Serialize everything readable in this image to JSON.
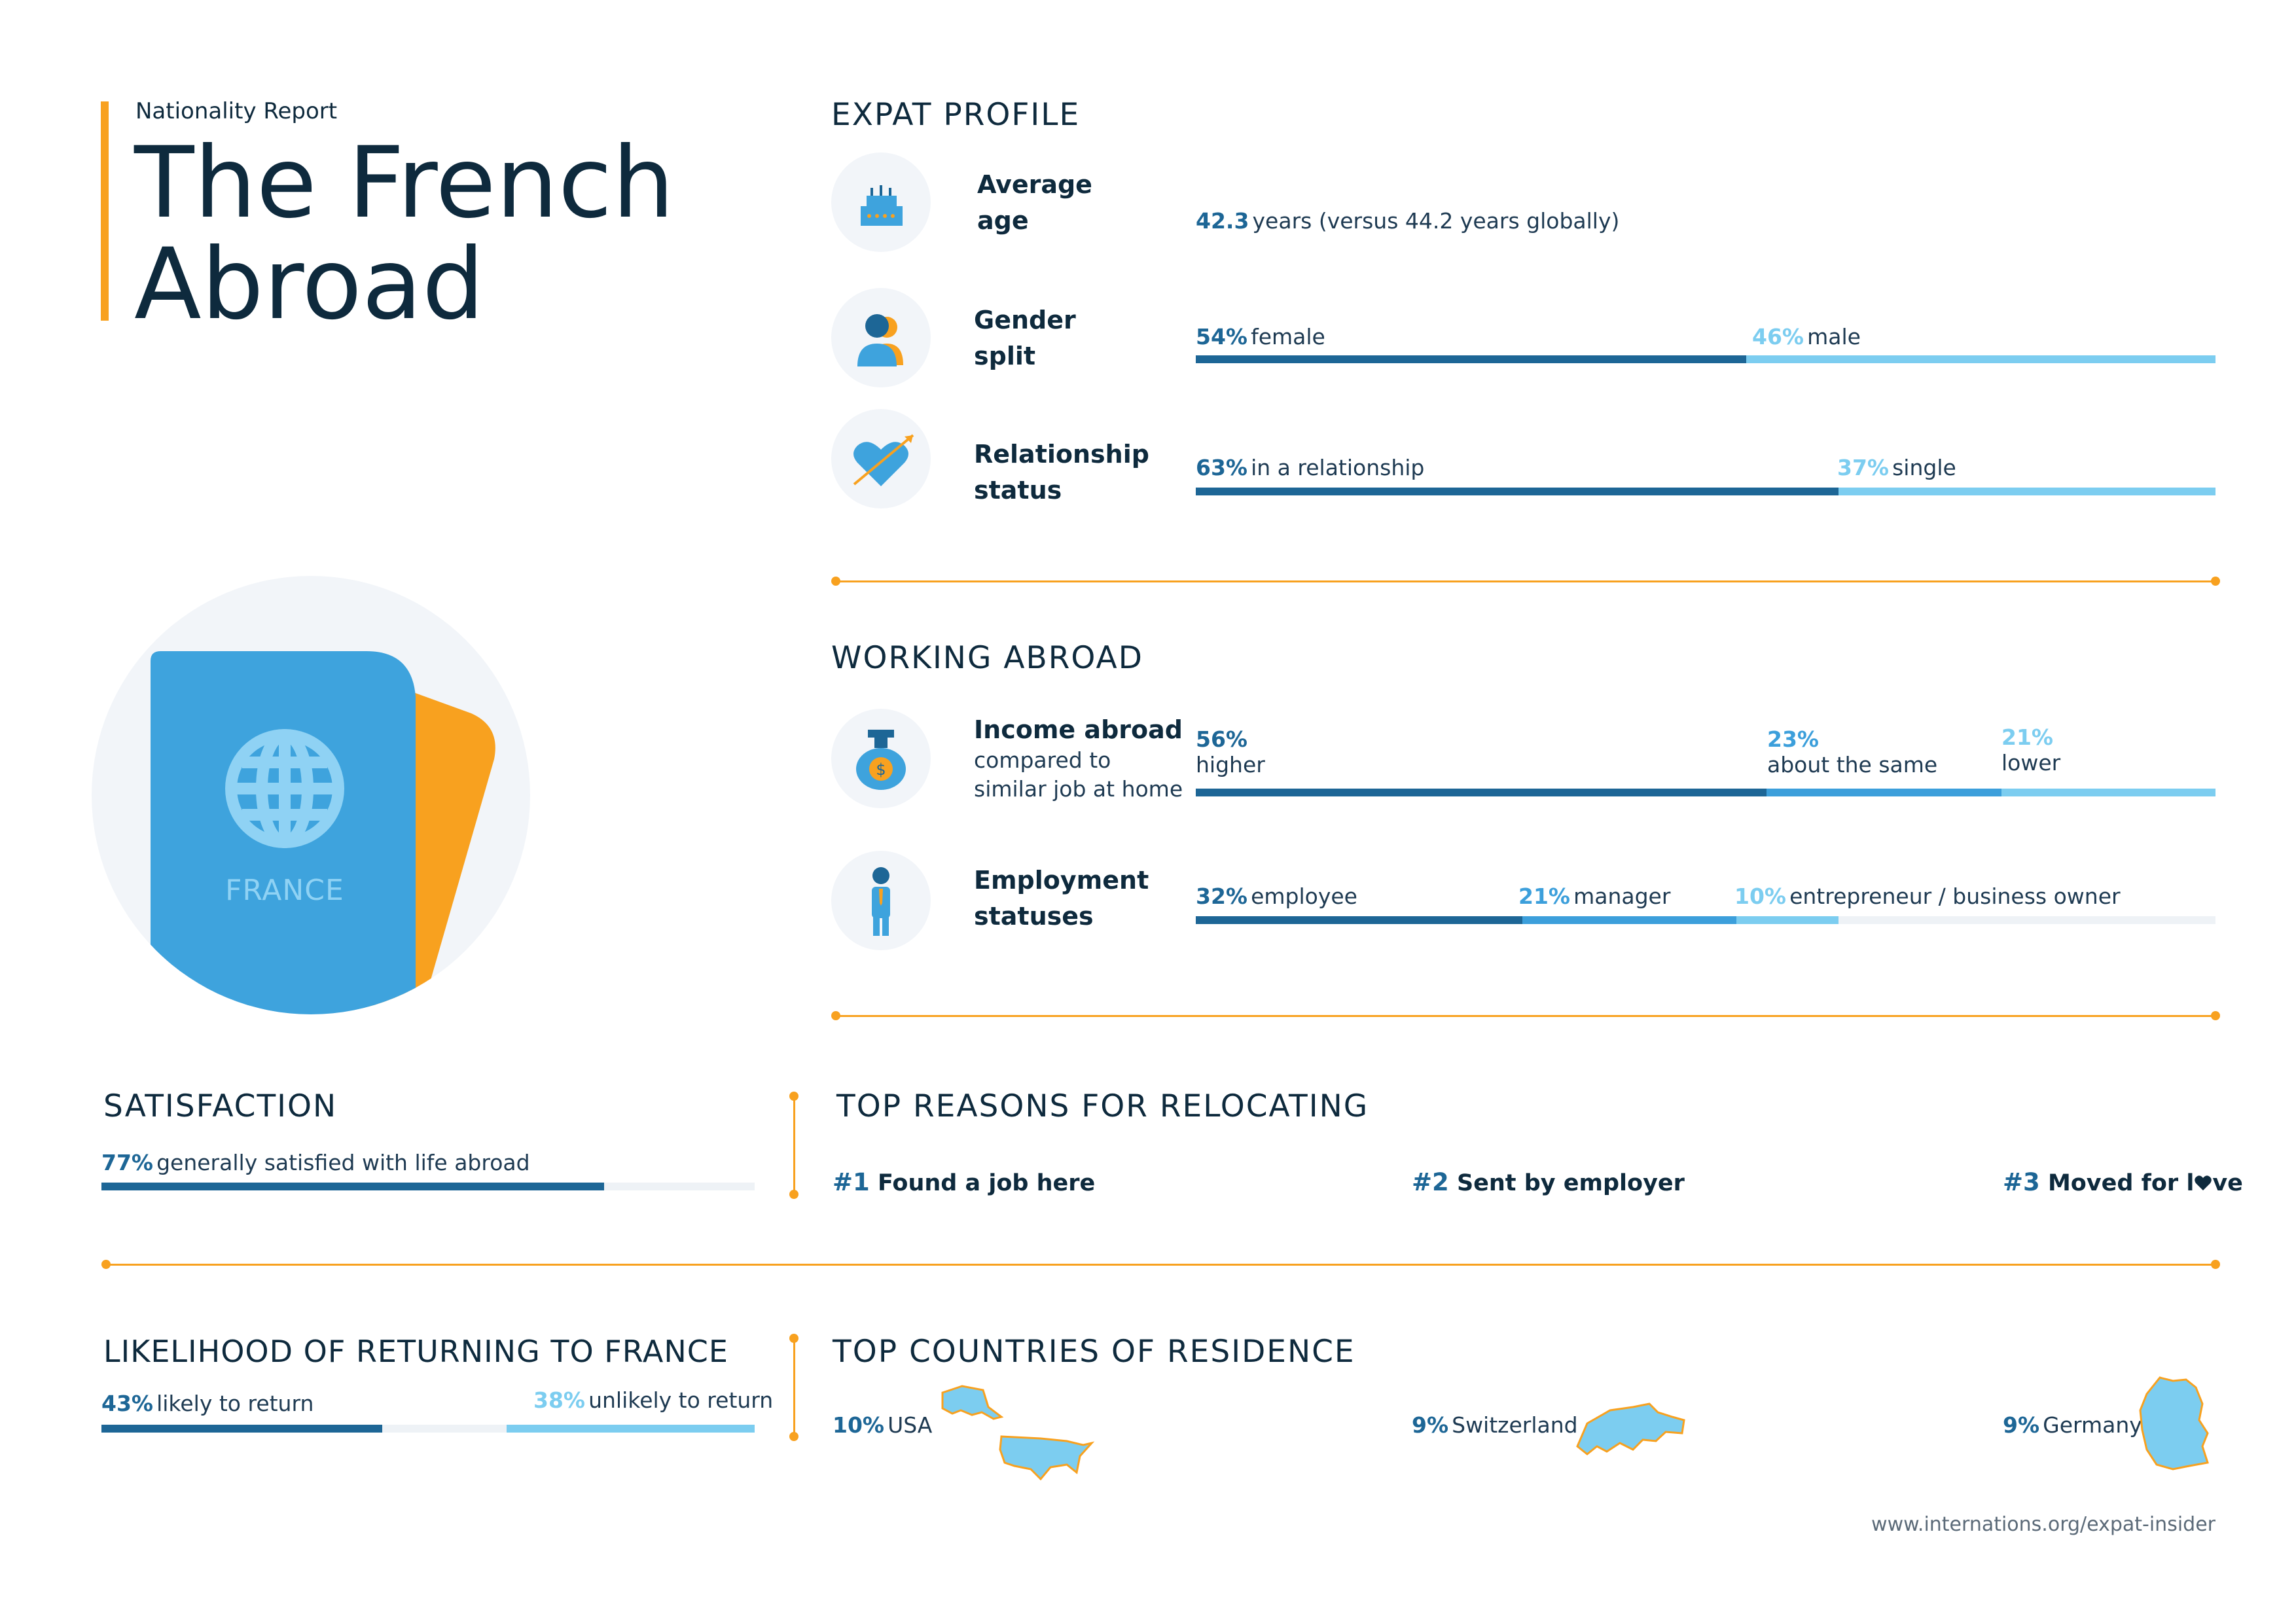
{
  "header": {
    "kicker": "Nationality Report",
    "title_line1": "The French",
    "title_line2": "Abroad"
  },
  "passport": {
    "country": "FRANCE"
  },
  "expat_profile": {
    "title": "EXPAT PROFILE",
    "average_age": {
      "label_line1": "Average",
      "label_line2": "age",
      "value": "42.3",
      "text": "years (versus 44.2 years globally)"
    },
    "gender": {
      "label_line1": "Gender",
      "label_line2": "split",
      "female_pct": "54%",
      "female_text": "female",
      "male_pct": "46%",
      "male_text": "male",
      "female_share": 0.54
    },
    "relationship": {
      "label_line1": "Relationship",
      "label_line2": "status",
      "rel_pct": "63%",
      "rel_text": "in a relationship",
      "single_pct": "37%",
      "single_text": "single",
      "rel_share": 0.63
    }
  },
  "working_abroad": {
    "title": "WORKING ABROAD",
    "income": {
      "label": "Income abroad",
      "sub1": "compared to",
      "sub2": "similar job at home",
      "higher_pct": "56%",
      "higher_text": "higher",
      "same_pct": "23%",
      "same_text": "about the same",
      "lower_pct": "21%",
      "lower_text": "lower",
      "shares": [
        0.56,
        0.23,
        0.21
      ]
    },
    "employment": {
      "label_line1": "Employment",
      "label_line2": "statuses",
      "employee_pct": "32%",
      "employee_text": "employee",
      "manager_pct": "21%",
      "manager_text": "manager",
      "entrepreneur_pct": "10%",
      "entrepreneur_text": "entrepreneur / business owner",
      "shares": [
        0.32,
        0.21,
        0.1
      ]
    }
  },
  "satisfaction": {
    "title": "SATISFACTION",
    "pct": "77%",
    "text": "generally satisfied with life abroad",
    "share": 0.77
  },
  "top_reasons": {
    "title": "TOP REASONS FOR RELOCATING",
    "items": [
      {
        "num": "#1",
        "text": "Found a job here"
      },
      {
        "num": "#2",
        "text": "Sent by employer"
      },
      {
        "num": "#3",
        "text_before": "Moved for l",
        "text_after": "ve"
      }
    ]
  },
  "returning": {
    "title": "LIKELIHOOD OF RETURNING TO FRANCE",
    "likely_pct": "43%",
    "likely_text": "likely to return",
    "unlikely_pct": "38%",
    "unlikely_text": "unlikely to return",
    "likely_share": 0.43,
    "unlikely_share": 0.38
  },
  "top_countries": {
    "title": "TOP COUNTRIES OF RESIDENCE",
    "items": [
      {
        "pct": "10%",
        "name": "USA"
      },
      {
        "pct": "9%",
        "name": "Switzerland"
      },
      {
        "pct": "9%",
        "name": "Germany"
      }
    ]
  },
  "footer": {
    "url": "www.internations.org/expat-insider"
  },
  "colors": {
    "dark_blue": "#1d6696",
    "mid_blue": "#3c9fdb",
    "light_blue": "#7ccdf0",
    "orange": "#f8a11f",
    "track": "#eef2f6"
  },
  "icons": [
    "cake-icon",
    "person-icon",
    "heart-arrow-icon",
    "money-bag-icon",
    "businessman-icon",
    "globe-icon",
    "heart-icon"
  ]
}
